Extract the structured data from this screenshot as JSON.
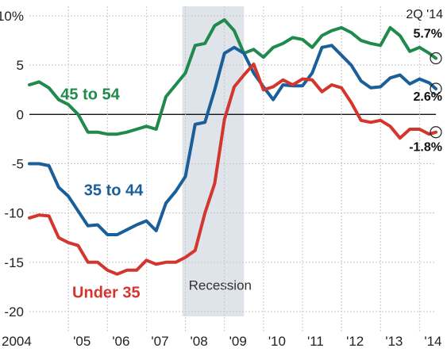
{
  "chart_data": {
    "type": "line",
    "period_label": "2Q '14",
    "recession": {
      "label": "Recession",
      "start": 2007.92,
      "end": 2009.5
    },
    "xticks": [
      {
        "label": "2004",
        "x": 2004.0
      },
      {
        "label": "'05",
        "x": 2005.0
      },
      {
        "label": "'06",
        "x": 2006.0
      },
      {
        "label": "'07",
        "x": 2007.0
      },
      {
        "label": "'08",
        "x": 2008.0
      },
      {
        "label": "'09",
        "x": 2009.0
      },
      {
        "label": "'10",
        "x": 2010.0
      },
      {
        "label": "'11",
        "x": 2011.0
      },
      {
        "label": "'12",
        "x": 2012.0
      },
      {
        "label": "'13",
        "x": 2013.0
      },
      {
        "label": "'14",
        "x": 2014.0
      }
    ],
    "yticks": [
      {
        "label": "10%",
        "y": 10
      },
      {
        "label": "5",
        "y": 5
      },
      {
        "label": "0",
        "y": 0
      },
      {
        "label": "-5",
        "y": -5
      },
      {
        "label": "-10",
        "y": -10
      },
      {
        "label": "-15",
        "y": -15
      },
      {
        "label": "-20",
        "y": -20
      }
    ],
    "xlim": [
      2004.0,
      2014.42
    ],
    "ylim": [
      -20,
      10
    ],
    "series": [
      {
        "name": "45 to 54",
        "color": "#1f8a4c",
        "end_label": "5.7%",
        "points": [
          [
            2004.0,
            3.0
          ],
          [
            2004.25,
            3.3
          ],
          [
            2004.5,
            2.7
          ],
          [
            2004.75,
            1.5
          ],
          [
            2005.0,
            1.0
          ],
          [
            2005.25,
            0.0
          ],
          [
            2005.5,
            -1.8
          ],
          [
            2005.75,
            -1.8
          ],
          [
            2006.0,
            -2.0
          ],
          [
            2006.25,
            -2.0
          ],
          [
            2006.5,
            -1.8
          ],
          [
            2006.75,
            -1.5
          ],
          [
            2007.0,
            -1.2
          ],
          [
            2007.25,
            -1.5
          ],
          [
            2007.5,
            1.8
          ],
          [
            2007.75,
            3.0
          ],
          [
            2008.0,
            4.2
          ],
          [
            2008.25,
            7.0
          ],
          [
            2008.5,
            7.2
          ],
          [
            2008.75,
            9.0
          ],
          [
            2009.0,
            9.6
          ],
          [
            2009.25,
            8.5
          ],
          [
            2009.5,
            6.2
          ],
          [
            2009.75,
            6.6
          ],
          [
            2010.0,
            5.8
          ],
          [
            2010.25,
            6.8
          ],
          [
            2010.5,
            7.2
          ],
          [
            2010.75,
            7.8
          ],
          [
            2011.0,
            7.6
          ],
          [
            2011.25,
            6.8
          ],
          [
            2011.5,
            8.0
          ],
          [
            2011.75,
            8.5
          ],
          [
            2012.0,
            8.8
          ],
          [
            2012.25,
            8.3
          ],
          [
            2012.5,
            7.5
          ],
          [
            2012.75,
            7.2
          ],
          [
            2013.0,
            7.0
          ],
          [
            2013.25,
            8.8
          ],
          [
            2013.5,
            8.0
          ],
          [
            2013.75,
            6.4
          ],
          [
            2014.0,
            6.8
          ],
          [
            2014.25,
            6.2
          ],
          [
            2014.42,
            5.7
          ]
        ]
      },
      {
        "name": "35 to 44",
        "color": "#1b5f9a",
        "end_label": "2.6%",
        "points": [
          [
            2004.0,
            -5.0
          ],
          [
            2004.25,
            -5.0
          ],
          [
            2004.5,
            -5.2
          ],
          [
            2004.75,
            -7.4
          ],
          [
            2005.0,
            -8.3
          ],
          [
            2005.25,
            -9.8
          ],
          [
            2005.5,
            -11.3
          ],
          [
            2005.75,
            -11.2
          ],
          [
            2006.0,
            -12.2
          ],
          [
            2006.25,
            -12.2
          ],
          [
            2006.5,
            -11.7
          ],
          [
            2006.75,
            -11.2
          ],
          [
            2007.0,
            -10.8
          ],
          [
            2007.25,
            -11.8
          ],
          [
            2007.5,
            -9.0
          ],
          [
            2007.75,
            -7.8
          ],
          [
            2008.0,
            -6.3
          ],
          [
            2008.25,
            -1.0
          ],
          [
            2008.5,
            -0.8
          ],
          [
            2008.75,
            2.5
          ],
          [
            2009.0,
            6.2
          ],
          [
            2009.25,
            6.8
          ],
          [
            2009.5,
            6.2
          ],
          [
            2009.75,
            4.2
          ],
          [
            2010.0,
            2.8
          ],
          [
            2010.25,
            1.5
          ],
          [
            2010.5,
            3.0
          ],
          [
            2010.75,
            2.9
          ],
          [
            2011.0,
            2.9
          ],
          [
            2011.25,
            4.2
          ],
          [
            2011.5,
            6.8
          ],
          [
            2011.75,
            7.0
          ],
          [
            2012.0,
            6.0
          ],
          [
            2012.25,
            5.0
          ],
          [
            2012.5,
            3.4
          ],
          [
            2012.75,
            2.7
          ],
          [
            2013.0,
            2.8
          ],
          [
            2013.25,
            3.7
          ],
          [
            2013.5,
            4.0
          ],
          [
            2013.75,
            3.1
          ],
          [
            2014.0,
            3.6
          ],
          [
            2014.25,
            3.2
          ],
          [
            2014.42,
            2.6
          ]
        ]
      },
      {
        "name": "Under 35",
        "color": "#d3362f",
        "end_label": "-1.8%",
        "points": [
          [
            2004.0,
            -10.5
          ],
          [
            2004.25,
            -10.2
          ],
          [
            2004.5,
            -10.3
          ],
          [
            2004.75,
            -12.5
          ],
          [
            2005.0,
            -13.0
          ],
          [
            2005.25,
            -13.3
          ],
          [
            2005.5,
            -15.0
          ],
          [
            2005.75,
            -15.0
          ],
          [
            2006.0,
            -15.8
          ],
          [
            2006.25,
            -16.2
          ],
          [
            2006.5,
            -15.8
          ],
          [
            2006.75,
            -15.8
          ],
          [
            2007.0,
            -14.8
          ],
          [
            2007.25,
            -15.2
          ],
          [
            2007.5,
            -15.0
          ],
          [
            2007.75,
            -15.0
          ],
          [
            2008.0,
            -14.5
          ],
          [
            2008.25,
            -13.8
          ],
          [
            2008.5,
            -10.0
          ],
          [
            2008.75,
            -7.0
          ],
          [
            2009.0,
            -0.5
          ],
          [
            2009.25,
            2.8
          ],
          [
            2009.5,
            4.0
          ],
          [
            2009.75,
            5.1
          ],
          [
            2010.0,
            2.5
          ],
          [
            2010.25,
            2.8
          ],
          [
            2010.5,
            3.5
          ],
          [
            2010.75,
            3.0
          ],
          [
            2011.0,
            3.6
          ],
          [
            2011.25,
            3.5
          ],
          [
            2011.5,
            2.3
          ],
          [
            2011.75,
            3.0
          ],
          [
            2012.0,
            2.7
          ],
          [
            2012.25,
            1.2
          ],
          [
            2012.5,
            -0.6
          ],
          [
            2012.75,
            -0.8
          ],
          [
            2013.0,
            -0.6
          ],
          [
            2013.25,
            -1.2
          ],
          [
            2013.5,
            -2.4
          ],
          [
            2013.75,
            -1.5
          ],
          [
            2014.0,
            -1.5
          ],
          [
            2014.25,
            -2.0
          ],
          [
            2014.42,
            -1.8
          ]
        ]
      }
    ]
  }
}
